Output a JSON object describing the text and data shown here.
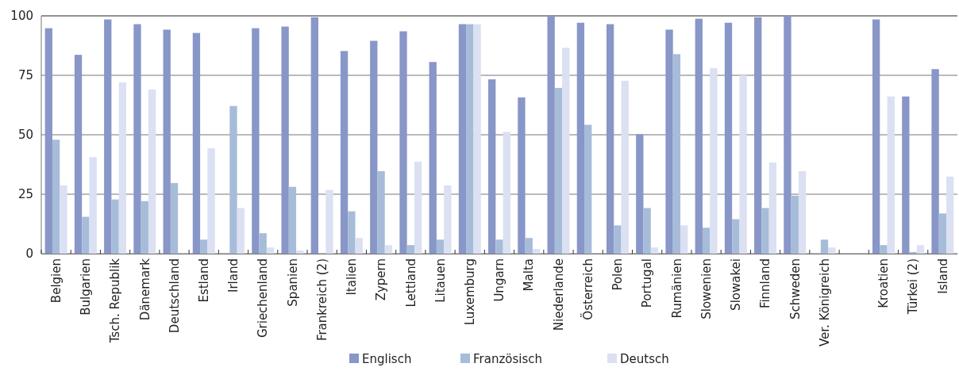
{
  "chart_data": {
    "type": "bar",
    "categories": [
      "Belgien",
      "Bulgarien",
      "Tsch. Republik",
      "Dänemark",
      "Deutschland",
      "Estland",
      "Irland",
      "Griechenland",
      "Spanien",
      "Frankreich (2)",
      "Italien",
      "Zypern",
      "Lettland",
      "Litauen",
      "Luxemburg",
      "Ungarn",
      "Malta",
      "Niederlande",
      "Österreich",
      "Polen",
      "Portugal",
      "Rumänien",
      "Slowenien",
      "Slowakei",
      "Finnland",
      "Schweden",
      "Ver. Königreich",
      null,
      "Kroatien",
      "Türkei (2)",
      "Island"
    ],
    "series": [
      {
        "name": "Englisch",
        "color": "#8896c8",
        "values": [
          94.8,
          83.6,
          98.5,
          96.5,
          94.2,
          92.8,
          null,
          94.8,
          95.5,
          99.4,
          85.2,
          89.5,
          93.5,
          80.6,
          96.5,
          73.3,
          65.7,
          100,
          97.1,
          96.5,
          50.2,
          94.2,
          98.8,
          97.1,
          99.4,
          100,
          null,
          null,
          98.5,
          66.1,
          77.6
        ]
      },
      {
        "name": "Französisch",
        "color": "#a6bcd9",
        "values": [
          47.9,
          15.5,
          22.8,
          22.1,
          29.7,
          5.9,
          62.1,
          8.6,
          28.1,
          null,
          17.8,
          34.7,
          3.6,
          5.9,
          96.5,
          5.9,
          6.6,
          69.7,
          54.2,
          11.9,
          19.2,
          83.9,
          10.9,
          14.5,
          19.2,
          24.4,
          5.9,
          null,
          3.6,
          0.7,
          16.9
        ]
      },
      {
        "name": "Deutsch",
        "color": "#dbe0f2",
        "values": [
          28.7,
          40.6,
          72,
          69,
          null,
          44.3,
          19.2,
          2.6,
          1.3,
          26.8,
          6.6,
          3.6,
          38.7,
          28.7,
          96.5,
          51.2,
          2,
          86.6,
          null,
          72.7,
          2.6,
          11.9,
          78,
          75,
          38.3,
          34.7,
          2.6,
          null,
          66.1,
          3.6,
          32.4
        ]
      }
    ],
    "ylim": [
      0,
      100
    ],
    "yticks": [
      0,
      25,
      50,
      75,
      100
    ],
    "grid": "y",
    "legend": "bottom"
  }
}
